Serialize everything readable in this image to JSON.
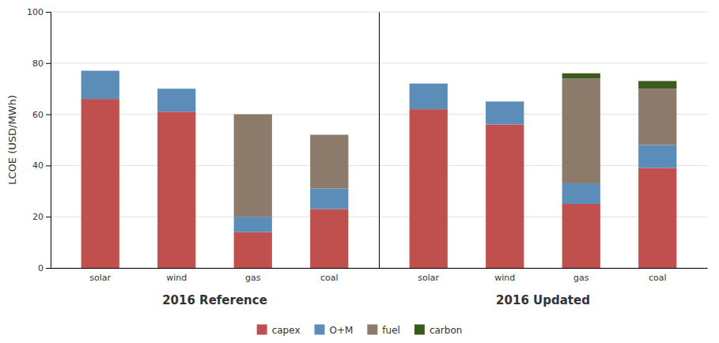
{
  "chart_data": [
    {
      "type": "bar",
      "stacked": true,
      "grid": true,
      "legend": "bottom",
      "xlabel": "2016 Reference",
      "ylabel": "LCOE (USD/MWh)",
      "categories": [
        "solar",
        "wind",
        "gas",
        "coal"
      ],
      "series": [
        {
          "name": "capex",
          "color": "#c0504d",
          "values": [
            66,
            61,
            14,
            23
          ]
        },
        {
          "name": "O+M",
          "color": "#5b8db8",
          "values": [
            11,
            9,
            6,
            8
          ]
        },
        {
          "name": "fuel",
          "color": "#8c7b6b",
          "values": [
            0,
            0,
            40,
            21
          ]
        },
        {
          "name": "carbon",
          "color": "#3d5a1e",
          "values": [
            0,
            0,
            0,
            0
          ]
        }
      ],
      "ylim": [
        0,
        100
      ],
      "yticks": [
        0,
        20,
        40,
        60,
        80,
        100
      ]
    },
    {
      "type": "bar",
      "stacked": true,
      "grid": true,
      "tick_labels": "x",
      "xlabel": "2016 Updated",
      "categories": [
        "solar",
        "wind",
        "gas",
        "coal"
      ],
      "series": [
        {
          "name": "capex",
          "color": "#c0504d",
          "values": [
            62,
            56,
            25,
            39
          ]
        },
        {
          "name": "O+M",
          "color": "#5b8db8",
          "values": [
            10,
            9,
            8,
            9
          ]
        },
        {
          "name": "fuel",
          "color": "#8c7b6b",
          "values": [
            0,
            0,
            41,
            22
          ]
        },
        {
          "name": "carbon",
          "color": "#3d5a1e",
          "values": [
            0,
            0,
            2,
            3
          ]
        }
      ],
      "ylim": [
        0,
        100
      ],
      "yticks": [
        0,
        20,
        40,
        60,
        80,
        100
      ]
    }
  ]
}
